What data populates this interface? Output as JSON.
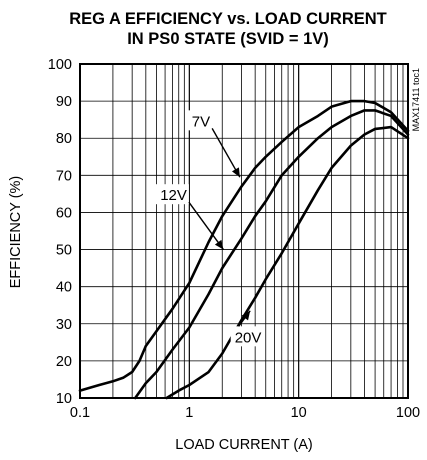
{
  "chart_data": {
    "type": "line",
    "title_line1": "REG A EFFICIENCY vs. LOAD CURRENT",
    "title_line2": "IN PS0 STATE (SVID = 1V)",
    "xlabel": "LOAD CURRENT (A)",
    "ylabel": "EFFICIENCY (%)",
    "side_code": "MAX17411 toc1",
    "x_scale": "log",
    "xlim": [
      0.1,
      100
    ],
    "ylim": [
      10,
      100
    ],
    "x_ticks": [
      {
        "value": 0.1,
        "label": "0.1"
      },
      {
        "value": 1,
        "label": "1"
      },
      {
        "value": 10,
        "label": "10"
      },
      {
        "value": 100,
        "label": "100"
      }
    ],
    "y_ticks": [
      {
        "value": 10,
        "label": "10"
      },
      {
        "value": 20,
        "label": "20"
      },
      {
        "value": 30,
        "label": "30"
      },
      {
        "value": 40,
        "label": "40"
      },
      {
        "value": 50,
        "label": "50"
      },
      {
        "value": 60,
        "label": "60"
      },
      {
        "value": 70,
        "label": "70"
      },
      {
        "value": 80,
        "label": "80"
      },
      {
        "value": 90,
        "label": "90"
      },
      {
        "value": 100,
        "label": "100"
      }
    ],
    "grid": true,
    "series": [
      {
        "name": "7V",
        "points": [
          [
            0.1,
            12
          ],
          [
            0.15,
            13.5
          ],
          [
            0.2,
            14.5
          ],
          [
            0.25,
            15.5
          ],
          [
            0.3,
            17
          ],
          [
            0.35,
            20
          ],
          [
            0.4,
            24
          ],
          [
            0.5,
            28
          ],
          [
            0.7,
            34
          ],
          [
            1,
            41
          ],
          [
            1.5,
            52
          ],
          [
            2,
            59
          ],
          [
            3,
            67
          ],
          [
            4,
            72
          ],
          [
            5,
            75
          ],
          [
            7,
            79
          ],
          [
            10,
            83
          ],
          [
            15,
            86
          ],
          [
            20,
            88.5
          ],
          [
            30,
            90
          ],
          [
            40,
            90
          ],
          [
            50,
            89.5
          ],
          [
            70,
            87
          ],
          [
            100,
            82
          ]
        ]
      },
      {
        "name": "12V",
        "points": [
          [
            0.32,
            10
          ],
          [
            0.4,
            14
          ],
          [
            0.5,
            17
          ],
          [
            0.7,
            23
          ],
          [
            1,
            29
          ],
          [
            1.5,
            38
          ],
          [
            2,
            45
          ],
          [
            3,
            53
          ],
          [
            4,
            59
          ],
          [
            5,
            63
          ],
          [
            7,
            70
          ],
          [
            10,
            75
          ],
          [
            15,
            80
          ],
          [
            20,
            83
          ],
          [
            30,
            86
          ],
          [
            40,
            87.5
          ],
          [
            50,
            87.5
          ],
          [
            70,
            86
          ],
          [
            100,
            81
          ]
        ]
      },
      {
        "name": "20V",
        "points": [
          [
            0.62,
            10
          ],
          [
            0.8,
            12
          ],
          [
            1,
            13.5
          ],
          [
            1.5,
            17
          ],
          [
            2,
            22
          ],
          [
            3,
            31
          ],
          [
            4,
            37
          ],
          [
            5,
            42
          ],
          [
            7,
            49
          ],
          [
            10,
            57
          ],
          [
            15,
            66
          ],
          [
            20,
            72
          ],
          [
            30,
            78
          ],
          [
            40,
            81
          ],
          [
            50,
            82.5
          ],
          [
            70,
            83
          ],
          [
            100,
            80
          ]
        ]
      }
    ],
    "annotations": [
      {
        "text": "7V",
        "x": 1.55,
        "y": 83.2,
        "arrow_to": [
          2.9,
          69.5
        ],
        "anchor": "end"
      },
      {
        "text": "12V",
        "x": 0.95,
        "y": 63.3,
        "arrow_to": [
          2.05,
          50
        ],
        "anchor": "end"
      },
      {
        "text": "20V",
        "x": 2.6,
        "y": 25,
        "arrow_to": [
          3.6,
          33.5
        ],
        "anchor": "start"
      }
    ]
  }
}
